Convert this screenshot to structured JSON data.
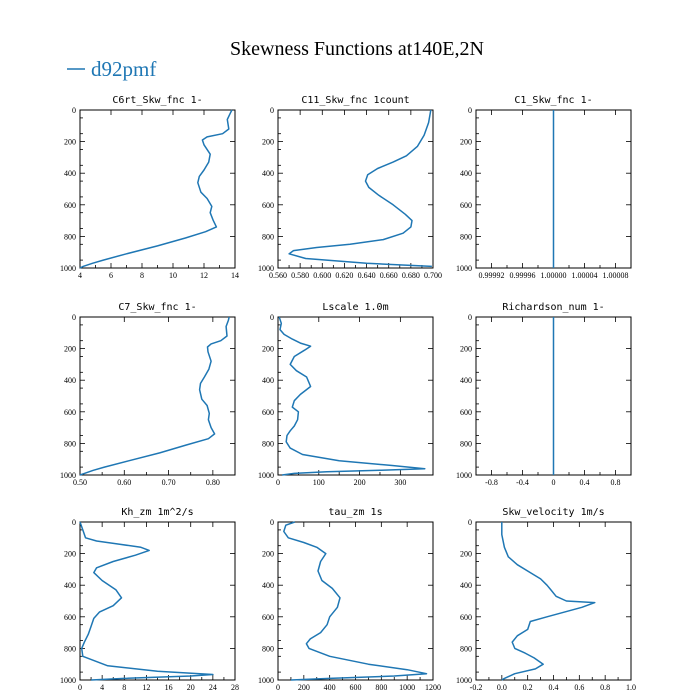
{
  "figure": {
    "title": "Skewness Functions at140E,2N",
    "legend_label": "d92pmf",
    "legend_color": "#1f77b4"
  },
  "chart_data": [
    {
      "type": "line",
      "title": "C6rt_Skw_fnc   1-",
      "xlim": [
        4,
        14
      ],
      "ylim": [
        1000,
        0
      ],
      "xticks": [
        "4",
        "6",
        "8",
        "10",
        "12",
        "14"
      ],
      "yticks": [
        "0",
        "200",
        "400",
        "600",
        "800",
        "1000"
      ],
      "series": [
        {
          "x": [
            13.8,
            13.7,
            13.5,
            13.6,
            13.2,
            12.2,
            11.9,
            12.0,
            12.4,
            12.3,
            12.0,
            11.7,
            11.6,
            11.8,
            12.2,
            12.5,
            12.4,
            12.6,
            12.8,
            12.1,
            10.8,
            9.0,
            7.0,
            5.5,
            4.8,
            4.2,
            4.0
          ],
          "y": [
            0,
            20,
            60,
            120,
            150,
            170,
            190,
            220,
            280,
            330,
            380,
            420,
            460,
            520,
            560,
            610,
            650,
            700,
            740,
            770,
            810,
            860,
            910,
            950,
            970,
            990,
            1000
          ]
        }
      ]
    },
    {
      "type": "line",
      "title": "C11_Skw_fnc   1count",
      "xlim": [
        0.56,
        0.7
      ],
      "ylim": [
        1000,
        0
      ],
      "xticks": [
        "0.560",
        "0.580",
        "0.600",
        "0.620",
        "0.640",
        "0.660",
        "0.680",
        "0.700"
      ],
      "yticks": [
        "0",
        "200",
        "400",
        "600",
        "800",
        "1000"
      ],
      "series": [
        {
          "x": [
            0.698,
            0.696,
            0.692,
            0.686,
            0.676,
            0.664,
            0.65,
            0.641,
            0.639,
            0.642,
            0.651,
            0.664,
            0.675,
            0.681,
            0.68,
            0.673,
            0.655,
            0.625,
            0.595,
            0.574,
            0.57,
            0.585,
            0.64,
            0.699
          ],
          "y": [
            0,
            80,
            160,
            230,
            290,
            330,
            370,
            410,
            450,
            490,
            540,
            600,
            660,
            700,
            740,
            780,
            820,
            850,
            870,
            890,
            910,
            940,
            970,
            990
          ]
        }
      ]
    },
    {
      "type": "line",
      "title": "C1_Skw_fnc   1-",
      "xlim": [
        0.9999,
        1.0001
      ],
      "ylim": [
        1000,
        0
      ],
      "xticks": [
        "0.99992",
        "0.99996",
        "1.00000",
        "1.00004",
        "1.00008"
      ],
      "yticks": [
        "0",
        "200",
        "400",
        "600",
        "800",
        "1000"
      ],
      "series": [
        {
          "x": [
            1.0,
            1.0
          ],
          "y": [
            0,
            1000
          ]
        }
      ]
    },
    {
      "type": "line",
      "title": "C7_Skw_fnc   1-",
      "xlim": [
        0.5,
        0.85
      ],
      "ylim": [
        1000,
        0
      ],
      "xticks": [
        "0.50",
        "0.60",
        "0.70",
        "0.80"
      ],
      "yticks": [
        "0",
        "200",
        "400",
        "600",
        "800",
        "1000"
      ],
      "series": [
        {
          "x": [
            0.837,
            0.835,
            0.83,
            0.832,
            0.818,
            0.796,
            0.788,
            0.789,
            0.796,
            0.791,
            0.781,
            0.772,
            0.77,
            0.775,
            0.787,
            0.792,
            0.79,
            0.796,
            0.804,
            0.79,
            0.74,
            0.68,
            0.61,
            0.555,
            0.53,
            0.51,
            0.5
          ],
          "y": [
            0,
            20,
            60,
            120,
            150,
            170,
            190,
            220,
            280,
            330,
            380,
            420,
            460,
            520,
            560,
            610,
            650,
            700,
            740,
            770,
            810,
            860,
            910,
            950,
            970,
            990,
            1000
          ]
        }
      ]
    },
    {
      "type": "line",
      "title": "Lscale   1.0m",
      "xlim": [
        0,
        380
      ],
      "ylim": [
        1000,
        0
      ],
      "xticks": [
        "0",
        "100",
        "200",
        "300"
      ],
      "yticks": [
        "0",
        "200",
        "400",
        "600",
        "800",
        "1000"
      ],
      "series": [
        {
          "x": [
            3,
            8,
            5,
            15,
            35,
            55,
            80,
            65,
            40,
            30,
            45,
            70,
            80,
            55,
            40,
            35,
            50,
            48,
            40,
            30,
            22,
            20,
            30,
            60,
            150,
            280,
            360,
            250,
            120,
            40,
            10
          ],
          "y": [
            0,
            40,
            80,
            110,
            140,
            165,
            185,
            210,
            250,
            300,
            340,
            380,
            440,
            490,
            530,
            570,
            600,
            650,
            690,
            720,
            750,
            790,
            830,
            870,
            910,
            940,
            960,
            970,
            980,
            990,
            1000
          ]
        }
      ]
    },
    {
      "type": "line",
      "title": "Richardson_num   1-",
      "xlim": [
        -1.0,
        1.0
      ],
      "ylim": [
        1000,
        0
      ],
      "xticks": [
        "-0.8",
        "-0.4",
        "0",
        "0.4",
        "0.8"
      ],
      "yticks": [
        "0",
        "200",
        "400",
        "600",
        "800",
        "1000"
      ],
      "series": [
        {
          "x": [
            0.0,
            0.0
          ],
          "y": [
            0,
            1000
          ]
        }
      ]
    },
    {
      "type": "line",
      "title": "Kh_zm   1m^2/s",
      "xlim": [
        0,
        28
      ],
      "ylim": [
        1000,
        0
      ],
      "xticks": [
        "0",
        "4",
        "8",
        "12",
        "16",
        "20",
        "24",
        "28"
      ],
      "yticks": [
        "0",
        "200",
        "400",
        "600",
        "800",
        "1000"
      ],
      "series": [
        {
          "x": [
            0,
            0.5,
            1,
            3,
            7,
            11,
            12.5,
            10,
            6,
            3,
            2.5,
            4,
            6.5,
            7.5,
            6,
            3.5,
            2.5,
            2,
            1.5,
            0.8,
            0.3,
            0.5,
            5,
            14,
            24,
            20,
            8,
            2
          ],
          "y": [
            0,
            50,
            100,
            120,
            140,
            160,
            180,
            210,
            250,
            290,
            320,
            370,
            430,
            480,
            530,
            570,
            610,
            660,
            710,
            760,
            800,
            850,
            910,
            945,
            965,
            975,
            990,
            1000
          ]
        }
      ]
    },
    {
      "type": "line",
      "title": "tau_zm   1s",
      "xlim": [
        0,
        1200
      ],
      "ylim": [
        1000,
        0
      ],
      "xticks": [
        "0",
        "200",
        "400",
        "600",
        "800",
        "1000",
        "1200"
      ],
      "yticks": [
        "0",
        "200",
        "400",
        "600",
        "800",
        "1000"
      ],
      "series": [
        {
          "x": [
            130,
            60,
            45,
            80,
            200,
            300,
            370,
            330,
            310,
            340,
            420,
            480,
            460,
            400,
            380,
            330,
            250,
            220,
            240,
            400,
            700,
            1000,
            1150,
            900,
            400,
            100
          ],
          "y": [
            0,
            20,
            60,
            100,
            130,
            160,
            200,
            250,
            310,
            370,
            420,
            480,
            540,
            600,
            650,
            700,
            740,
            770,
            800,
            850,
            900,
            935,
            960,
            975,
            990,
            1000
          ]
        }
      ]
    },
    {
      "type": "line",
      "title": "Skw_velocity   1m/s",
      "xlim": [
        -0.2,
        1.0
      ],
      "ylim": [
        1000,
        0
      ],
      "xticks": [
        "-0.2",
        "0.0",
        "0.2",
        "0.4",
        "0.6",
        "0.8",
        "1.0"
      ],
      "yticks": [
        "0",
        "200",
        "400",
        "600",
        "800",
        "1000"
      ],
      "series": [
        {
          "x": [
            0.0,
            0.0,
            0.02,
            0.05,
            0.12,
            0.22,
            0.3,
            0.35,
            0.38,
            0.42,
            0.5,
            0.72,
            0.62,
            0.35,
            0.22,
            0.2,
            0.12,
            0.08,
            0.1,
            0.18,
            0.25,
            0.32,
            0.26,
            0.1,
            0.02,
            0.0
          ],
          "y": [
            0,
            80,
            160,
            220,
            270,
            320,
            360,
            400,
            430,
            470,
            500,
            510,
            540,
            600,
            630,
            680,
            720,
            760,
            800,
            830,
            860,
            900,
            930,
            960,
            990,
            1000
          ]
        }
      ]
    }
  ]
}
